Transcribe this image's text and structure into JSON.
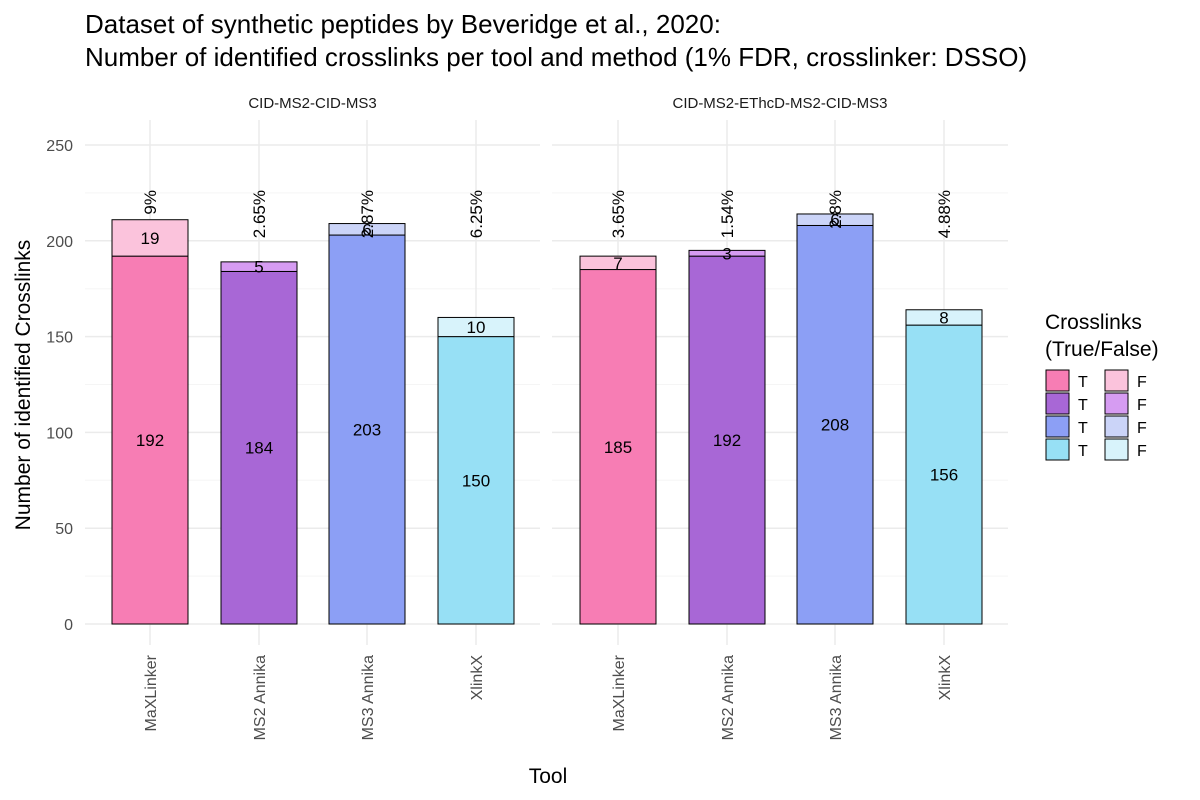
{
  "chart_data": {
    "type": "bar",
    "stacked": true,
    "title_lines": [
      "Dataset of synthetic peptides by Beveridge et al., 2020:",
      "Number of identified crosslinks per tool and method (1% FDR, crosslinker: DSSO)"
    ],
    "xlabel": "Tool",
    "ylabel": "Number of identified Crosslinks",
    "ylim": [
      0,
      260
    ],
    "yticks": [
      0,
      50,
      100,
      150,
      200,
      250
    ],
    "grid": true,
    "categories": [
      "MaXLinker",
      "MS2 Annika",
      "MS3 Annika",
      "XlinkX"
    ],
    "colors": {
      "true": [
        "#f77db4",
        "#a867d6",
        "#8c9ff5",
        "#97e0f5"
      ],
      "false": [
        "#fbc3dc",
        "#d69cf2",
        "#cbd4f8",
        "#d8f3fb"
      ],
      "outline": "#000000",
      "grid_major": "#ebebeb",
      "grid_minor": "#f5f5f5"
    },
    "panels": [
      {
        "strip": "CID-MS2-CID-MS3",
        "true_values": [
          192,
          184,
          203,
          150
        ],
        "false_values": [
          19,
          5,
          6,
          10
        ],
        "percent_labels": [
          "9%",
          "2.65%",
          "2.87%",
          "6.25%"
        ]
      },
      {
        "strip": "CID-MS2-EThcD-MS2-CID-MS3",
        "true_values": [
          185,
          192,
          208,
          156
        ],
        "false_values": [
          7,
          3,
          6,
          8
        ],
        "percent_labels": [
          "3.65%",
          "1.54%",
          "2.8%",
          "4.88%"
        ]
      }
    ],
    "legend": {
      "title_lines": [
        "Crosslinks",
        "(True/False)"
      ],
      "position": "right",
      "true_label": "T",
      "false_label": "F"
    }
  }
}
